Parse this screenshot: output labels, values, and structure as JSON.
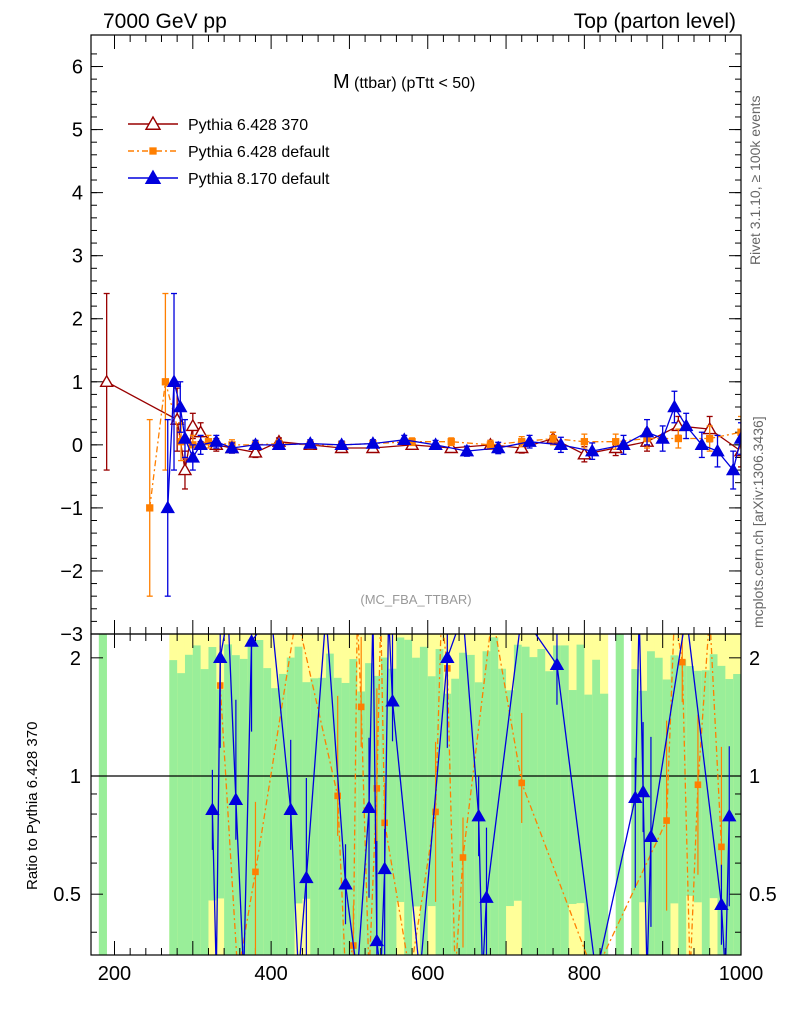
{
  "header": {
    "left": "7000 GeV pp",
    "right": "Top (parton level)"
  },
  "side_labels": {
    "rivet": "Rivet 3.1.10, ≥ 100k events",
    "mcplots": "mcplots.cern.ch [arXiv:1306.3436]"
  },
  "chart_data": [
    {
      "type": "line",
      "panel": "main",
      "title_main": "M",
      "title_sub": "(ttbar) (pTtt < 50)",
      "watermark": "(MC_FBA_TTBAR)",
      "xlim": [
        170,
        1000
      ],
      "ylim": [
        -3,
        6.5
      ],
      "yticks": [
        "6",
        "5",
        "4",
        "3",
        "2",
        "1",
        "0",
        "−1",
        "−2",
        "−3"
      ],
      "ytick_values": [
        6,
        5,
        4,
        3,
        2,
        1,
        0,
        -1,
        -2,
        -3
      ],
      "legend_position": "top-left",
      "series": [
        {
          "name": "Pythia 6.428 370",
          "color": "#990000",
          "marker": "open-triangle",
          "x": [
            190,
            280,
            290,
            300,
            310,
            330,
            350,
            380,
            410,
            450,
            490,
            530,
            580,
            630,
            680,
            720,
            760,
            800,
            840,
            880,
            920,
            960,
            1000
          ],
          "y": [
            1.0,
            0.4,
            -0.4,
            0.3,
            0.2,
            0.0,
            -0.05,
            -0.12,
            0.05,
            0.0,
            -0.05,
            -0.05,
            0.0,
            -0.05,
            0.0,
            -0.05,
            0.1,
            -0.15,
            -0.05,
            0.05,
            0.3,
            0.25,
            -0.1
          ],
          "err": [
            1.4,
            0.5,
            0.3,
            0.2,
            0.15,
            0.1,
            0.08,
            0.08,
            0.06,
            0.06,
            0.06,
            0.06,
            0.06,
            0.06,
            0.07,
            0.08,
            0.1,
            0.12,
            0.12,
            0.15,
            0.15,
            0.2,
            0.25
          ]
        },
        {
          "name": "Pythia 6.428 default",
          "color": "#ff7f00",
          "marker": "filled-square",
          "x": [
            245,
            265,
            285,
            300,
            320,
            350,
            380,
            410,
            450,
            490,
            530,
            580,
            630,
            680,
            720,
            760,
            800,
            840,
            880,
            920,
            960,
            1000
          ],
          "y": [
            -1.0,
            1.0,
            0.05,
            0.0,
            0.05,
            0.0,
            0.0,
            0.02,
            0.0,
            0.0,
            0.02,
            0.05,
            0.05,
            0.0,
            0.05,
            0.1,
            0.05,
            0.05,
            0.1,
            0.1,
            0.1,
            0.2
          ],
          "err": [
            1.4,
            1.4,
            0.3,
            0.15,
            0.1,
            0.08,
            0.07,
            0.06,
            0.06,
            0.06,
            0.06,
            0.06,
            0.06,
            0.07,
            0.08,
            0.1,
            0.12,
            0.12,
            0.15,
            0.15,
            0.2,
            0.25
          ]
        },
        {
          "name": "Pythia 8.170 default",
          "color": "#0000dd",
          "marker": "filled-triangle",
          "x": [
            268,
            276,
            284,
            290,
            300,
            310,
            330,
            350,
            380,
            410,
            450,
            490,
            530,
            570,
            610,
            650,
            690,
            730,
            770,
            810,
            850,
            880,
            900,
            915,
            930,
            950,
            970,
            990,
            1000
          ],
          "y": [
            -1.0,
            1.0,
            0.6,
            0.1,
            -0.2,
            0.0,
            0.05,
            -0.05,
            0.0,
            0.0,
            0.02,
            0.0,
            0.02,
            0.08,
            0.0,
            -0.1,
            -0.05,
            0.05,
            0.0,
            -0.1,
            0.0,
            0.2,
            0.1,
            0.6,
            0.3,
            0.0,
            -0.1,
            -0.4,
            0.1
          ],
          "err": [
            1.4,
            1.4,
            0.4,
            0.3,
            0.2,
            0.15,
            0.1,
            0.08,
            0.07,
            0.06,
            0.06,
            0.06,
            0.06,
            0.07,
            0.07,
            0.08,
            0.09,
            0.1,
            0.12,
            0.13,
            0.15,
            0.2,
            0.2,
            0.25,
            0.2,
            0.2,
            0.25,
            0.3,
            0.25
          ]
        }
      ]
    },
    {
      "type": "line",
      "panel": "ratio",
      "ylabel": "Ratio to Pythia 6.428 370",
      "reference": 1.0,
      "ylim": [
        0.35,
        2.3
      ],
      "yticks": [
        "2",
        "1",
        "0.5"
      ],
      "ytick_values": [
        2,
        1,
        0.5
      ],
      "xlim": [
        170,
        1000
      ],
      "xticks": [
        "200",
        "400",
        "600",
        "800",
        "1000"
      ],
      "xtick_values": [
        200,
        400,
        600,
        800,
        1000
      ],
      "band_colors": {
        "green": "#99ee99",
        "yellow": "#ffff99"
      },
      "series": [
        {
          "name": "Pythia 6.428 default",
          "color": "#ff7f00",
          "marker": "filled-square",
          "x": [
            335,
            380,
            485,
            505,
            515,
            535,
            545,
            610,
            625,
            645,
            720,
            905,
            925,
            945,
            975
          ],
          "y": [
            1.7,
            0.57,
            0.89,
            0.37,
            1.5,
            0.93,
            0.76,
            0.81,
            1.88,
            0.62,
            0.96,
            0.77,
            1.95,
            0.95,
            0.66
          ]
        },
        {
          "name": "Pythia 8.170 default",
          "color": "#0000dd",
          "marker": "filled-triangle",
          "x": [
            325,
            335,
            355,
            375,
            425,
            445,
            495,
            525,
            535,
            545,
            555,
            625,
            665,
            675,
            765,
            865,
            875,
            885,
            975,
            985
          ],
          "y": [
            0.82,
            2.0,
            0.87,
            2.2,
            0.82,
            0.55,
            0.53,
            0.83,
            0.38,
            0.58,
            1.55,
            2.0,
            0.79,
            0.49,
            1.92,
            0.88,
            0.91,
            0.7,
            0.47,
            0.79
          ]
        }
      ]
    }
  ]
}
